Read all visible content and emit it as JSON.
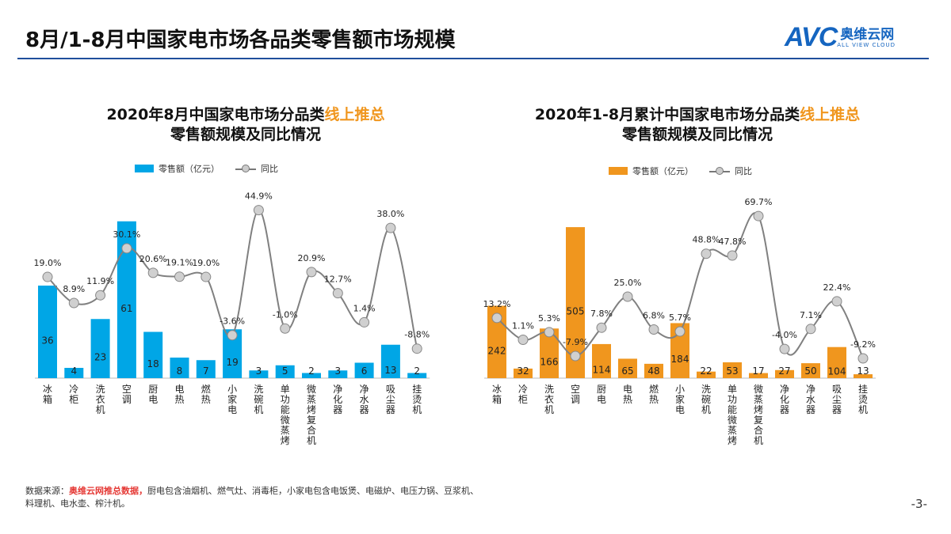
{
  "header": {
    "title": "8月/1-8月中国家电市场各品类零售额市场规模",
    "logo_text": "AVC",
    "logo_cn": "奥维云网",
    "logo_sub": "ALL VIEW CLOUD"
  },
  "colors": {
    "left_bar": "#00a6e6",
    "right_bar": "#f0961e",
    "line": "#808080",
    "marker": "#d0d0d0",
    "highlight": "#f0961e",
    "header_rule": "#1f4e9c"
  },
  "chart_data": [
    {
      "type": "bar+line",
      "title_part1": "2020年8月中国家电市场分品类",
      "title_highlight": "线上推总",
      "title_line2": "零售额规模及同比情况",
      "legend": {
        "bar": "零售额（亿元）",
        "line": "同比"
      },
      "legend_placement": "top",
      "categories": [
        "冰箱",
        "冷柜",
        "洗衣机",
        "空调",
        "厨电",
        "电热",
        "燃热",
        "小家电",
        "洗碗机",
        "单功能微蒸烤",
        "微蒸烤复合机",
        "净化器",
        "净水器",
        "吸尘器",
        "挂烫机"
      ],
      "series": [
        {
          "name": "零售额（亿元）",
          "type": "bar",
          "values": [
            36,
            4,
            23,
            61,
            18,
            8,
            7,
            19,
            3,
            5,
            2,
            3,
            6,
            13,
            2
          ]
        },
        {
          "name": "同比",
          "type": "line",
          "unit": "%",
          "values": [
            19.0,
            8.9,
            11.9,
            30.1,
            20.6,
            19.1,
            19.0,
            -3.6,
            44.9,
            -1.0,
            20.9,
            12.7,
            1.4,
            38.0,
            -8.8
          ]
        }
      ]
    },
    {
      "type": "bar+line",
      "title_part1": "2020年1-8月累计中国家电市场分品类",
      "title_highlight": "线上推总",
      "title_line2": "零售额规模及同比情况",
      "legend": {
        "bar": "零售额（亿元）",
        "line": "同比"
      },
      "legend_placement": "top",
      "categories": [
        "冰箱",
        "冷柜",
        "洗衣机",
        "空调",
        "厨电",
        "电热",
        "燃热",
        "小家电",
        "洗碗机",
        "单功能微蒸烤",
        "微蒸烤复合机",
        "净化器",
        "净水器",
        "吸尘器",
        "挂烫机"
      ],
      "series": [
        {
          "name": "零售额（亿元）",
          "type": "bar",
          "values": [
            242,
            32,
            166,
            505,
            114,
            65,
            48,
            184,
            22,
            53,
            17,
            27,
            50,
            104,
            13
          ]
        },
        {
          "name": "同比",
          "type": "line",
          "unit": "%",
          "values": [
            13.2,
            1.1,
            5.3,
            -7.9,
            7.8,
            25.0,
            6.8,
            5.7,
            48.8,
            47.8,
            69.7,
            -4.0,
            7.1,
            22.4,
            -9.2
          ]
        }
      ]
    }
  ],
  "footer": {
    "label": "数据来源：",
    "source": "奥维云网推总数据，",
    "note": "厨电包含油烟机、燃气灶、消毒柜，小家电包含电饭煲、电磁炉、电压力锅、豆浆机、料理机、电水壶、榨汁机。"
  },
  "page_number": "-3-"
}
